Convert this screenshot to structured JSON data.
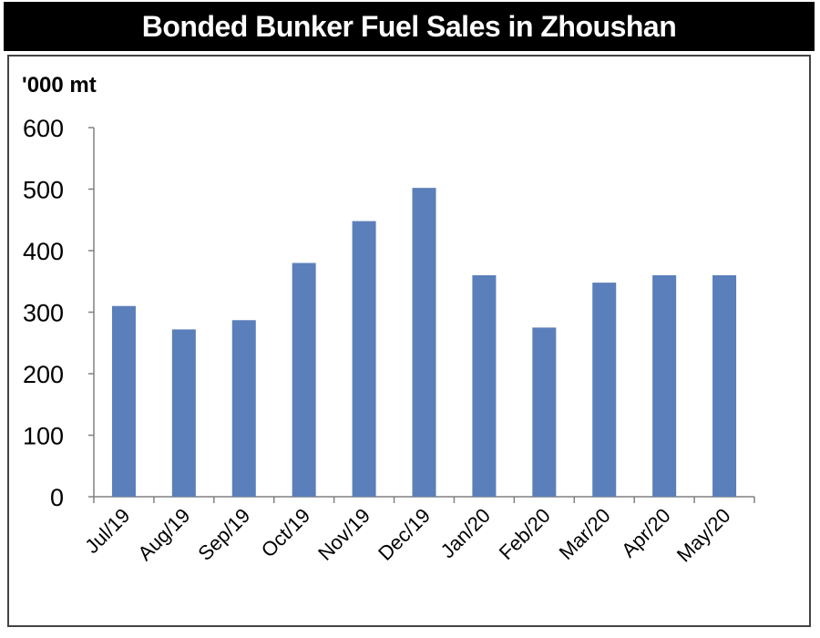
{
  "chart_data": {
    "type": "bar",
    "title": "Bonded Bunker Fuel Sales in Zhoushan",
    "ylabel": "'000 mt",
    "xlabel": "",
    "categories": [
      "Jul/19",
      "Aug/19",
      "Sep/19",
      "Oct/19",
      "Nov/19",
      "Dec/19",
      "Jan/20",
      "Feb/20",
      "Mar/20",
      "Apr/20",
      "May/20"
    ],
    "values": [
      310,
      272,
      287,
      380,
      448,
      502,
      360,
      275,
      348,
      360,
      360
    ],
    "yticks": [
      "0",
      "100",
      "200",
      "300",
      "400",
      "500",
      "600"
    ],
    "ylim": [
      0,
      600
    ],
    "grid": false,
    "bar_color": "#5b7fba",
    "title_bg": "#000000",
    "title_color": "#ffffff"
  }
}
